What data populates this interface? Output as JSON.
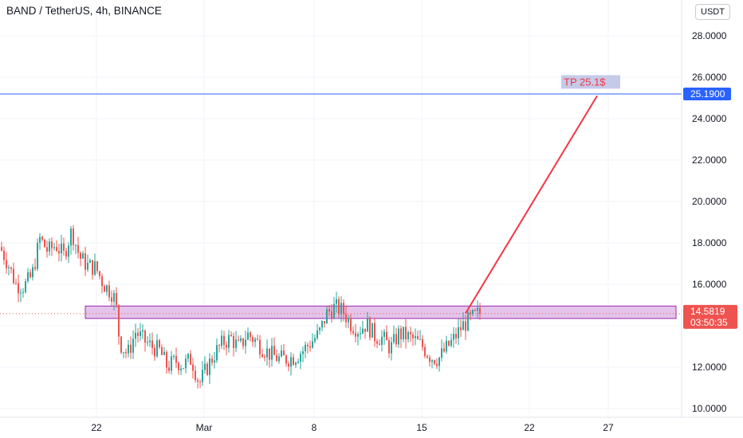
{
  "header": {
    "title": "BAND / TetherUS, 4h, BINANCE",
    "currency_button": "USDT"
  },
  "chart_data": {
    "type": "candlestick",
    "symbol": "BAND / TetherUS",
    "interval": "4h",
    "exchange": "BINANCE",
    "y_ticks": [
      "28.0000",
      "26.0000",
      "24.0000",
      "22.0000",
      "20.0000",
      "18.0000",
      "16.0000",
      "12.0000",
      "10.0000"
    ],
    "y_tick_values": [
      28,
      26,
      24,
      22,
      20,
      18,
      16,
      12,
      10
    ],
    "x_ticks": [
      "22",
      "Mar",
      "8",
      "15",
      "22",
      "27"
    ],
    "horizontal_line": {
      "value": 25.19,
      "label": "25.1900",
      "color": "#2962ff"
    },
    "target_label": {
      "text": "TP 25.1$",
      "value": 25.1
    },
    "zone": {
      "low": 14.35,
      "high": 14.95,
      "color": "#9c27b0"
    },
    "current_price": {
      "label": "14.5819",
      "value": 14.5819,
      "countdown": "03:50:35",
      "color": "#ef5350"
    },
    "projection": {
      "from": 14.6,
      "to": 25.1,
      "color": "#f23645"
    },
    "up_color": "#26a69a",
    "down_color": "#ef5350",
    "path_anchors": [
      [
        0,
        17.8
      ],
      [
        10,
        17.0
      ],
      [
        20,
        16.0
      ],
      [
        30,
        15.9
      ],
      [
        40,
        16.4
      ],
      [
        50,
        18.2
      ],
      [
        60,
        17.6
      ],
      [
        70,
        17.9
      ],
      [
        80,
        17.4
      ],
      [
        90,
        18.6
      ],
      [
        100,
        17.3
      ],
      [
        110,
        16.9
      ],
      [
        120,
        16.8
      ],
      [
        130,
        16.0
      ],
      [
        140,
        15.6
      ],
      [
        145,
        15.2
      ],
      [
        150,
        13.2
      ],
      [
        160,
        12.6
      ],
      [
        170,
        13.7
      ],
      [
        180,
        13.3
      ],
      [
        190,
        13.0
      ],
      [
        200,
        12.8
      ],
      [
        210,
        12.0
      ],
      [
        220,
        12.3
      ],
      [
        230,
        12.1
      ],
      [
        240,
        12.4
      ],
      [
        250,
        11.2
      ],
      [
        260,
        12.0
      ],
      [
        270,
        12.7
      ],
      [
        280,
        13.2
      ],
      [
        290,
        13.4
      ],
      [
        300,
        12.9
      ],
      [
        310,
        13.6
      ],
      [
        320,
        13.3
      ],
      [
        330,
        12.9
      ],
      [
        340,
        12.6
      ],
      [
        350,
        12.4
      ],
      [
        360,
        12.4
      ],
      [
        370,
        12.5
      ],
      [
        380,
        12.8
      ],
      [
        390,
        13.2
      ],
      [
        400,
        13.6
      ],
      [
        410,
        14.6
      ],
      [
        420,
        14.9
      ],
      [
        430,
        14.7
      ],
      [
        440,
        14.1
      ],
      [
        450,
        13.8
      ],
      [
        460,
        14.1
      ],
      [
        470,
        13.5
      ],
      [
        480,
        13.4
      ],
      [
        490,
        12.9
      ],
      [
        500,
        13.6
      ],
      [
        510,
        13.5
      ],
      [
        520,
        13.3
      ],
      [
        530,
        13.0
      ],
      [
        540,
        12.5
      ],
      [
        550,
        12.4
      ],
      [
        560,
        12.9
      ],
      [
        570,
        13.4
      ],
      [
        580,
        14.0
      ],
      [
        590,
        14.3
      ],
      [
        600,
        14.58
      ]
    ]
  }
}
